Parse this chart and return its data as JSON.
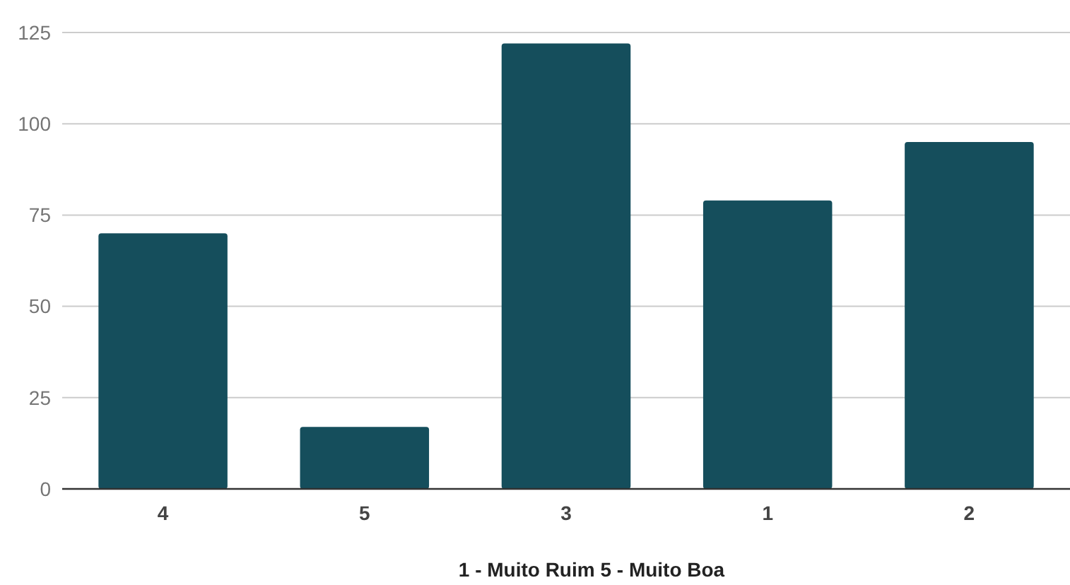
{
  "chart_data": {
    "type": "bar",
    "xlabel": "1 - Muito Ruim 5 - Muito Boa",
    "categories": [
      "4",
      "5",
      "3",
      "1",
      "2"
    ],
    "values": [
      70,
      17,
      122,
      79,
      95
    ],
    "color": "#154e5c",
    "ylim": [
      0,
      125
    ],
    "yticks": [
      0,
      25,
      50,
      75,
      100,
      125
    ],
    "grid": "y"
  }
}
